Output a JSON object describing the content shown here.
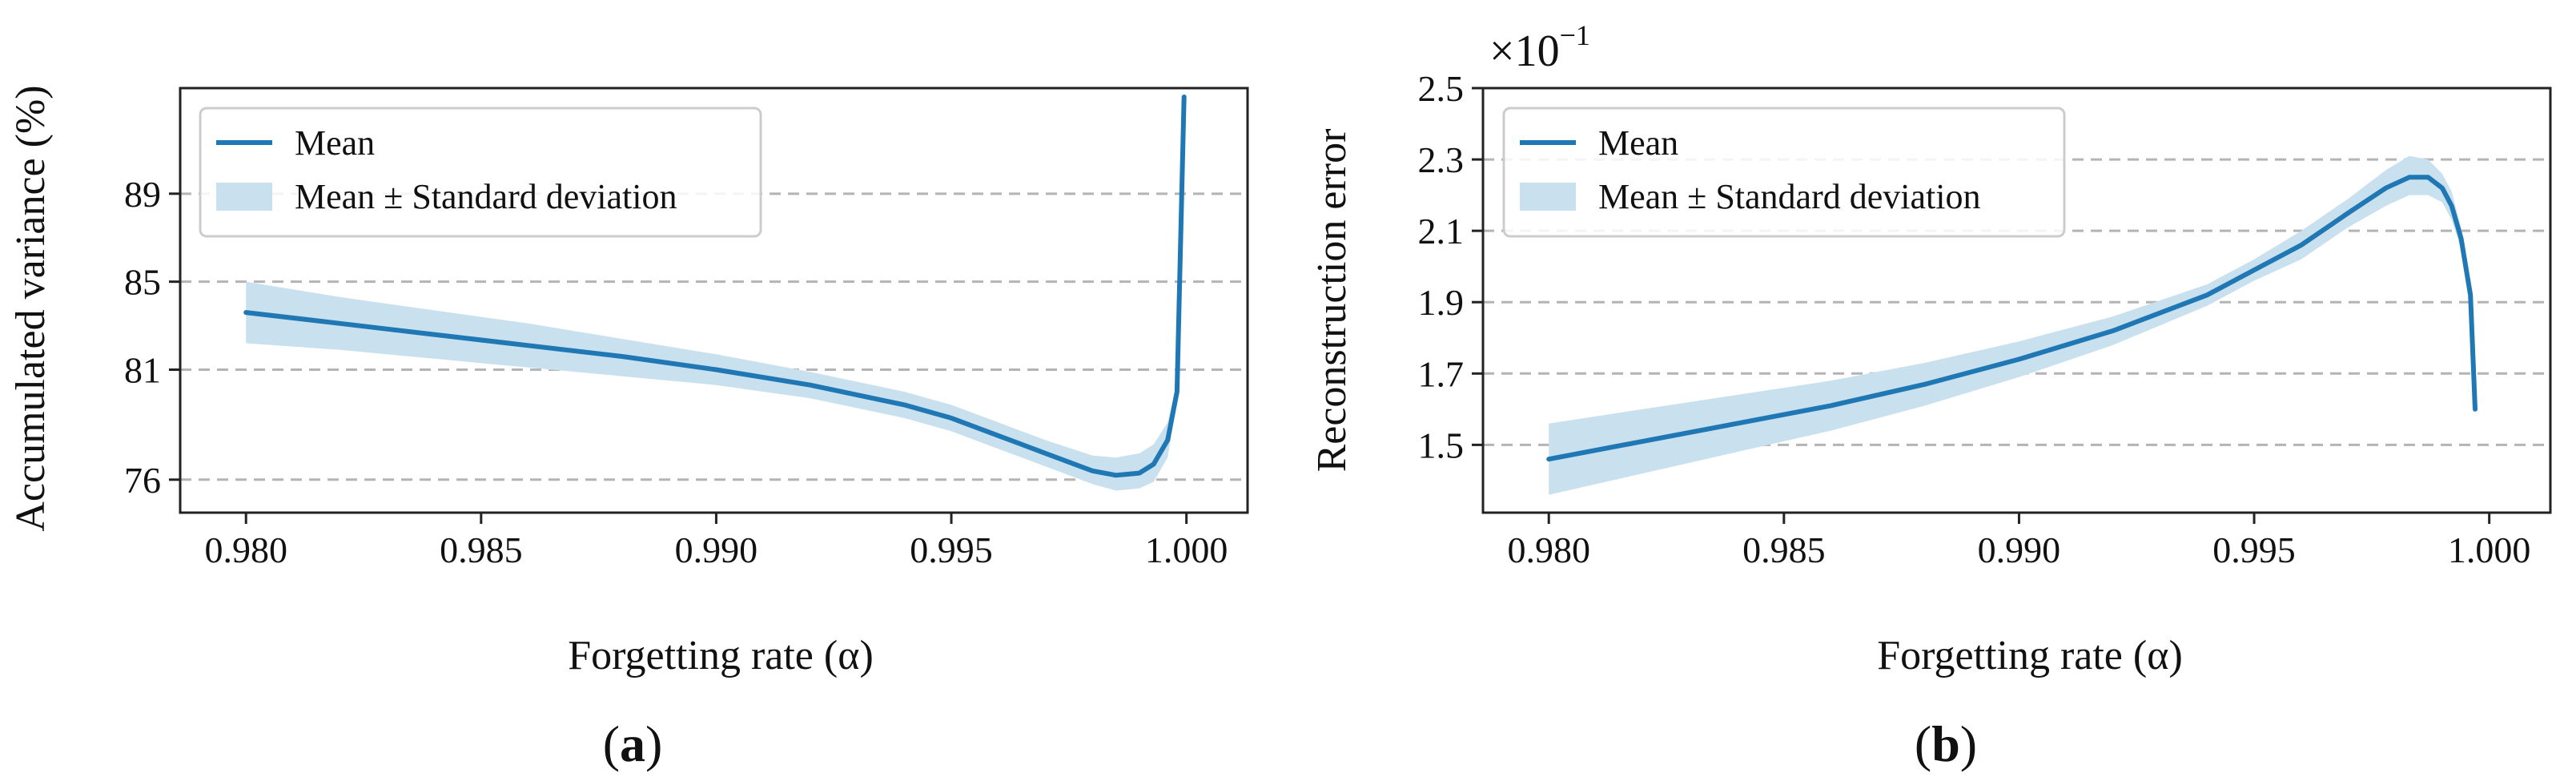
{
  "chart_data": [
    {
      "type": "line",
      "panel_label": "a",
      "xlabel": "Forgetting rate (α)",
      "ylabel": "Accumulated variance (%)",
      "xlim": [
        0.9786,
        1.0013
      ],
      "ylim": [
        74.5,
        93.8
      ],
      "xticks": [
        0.98,
        0.985,
        0.99,
        0.995,
        1.0
      ],
      "xtick_labels": [
        "0.980",
        "0.985",
        "0.990",
        "0.995",
        "1.000"
      ],
      "yticks": [
        76,
        81,
        85,
        89
      ],
      "ytick_labels": [
        "76",
        "81",
        "85",
        "89"
      ],
      "grid": "horizontal dashed",
      "legend": {
        "position": "top-left",
        "entries": [
          "Mean",
          "Mean ± Standard deviation"
        ]
      },
      "series": [
        {
          "name": "Mean",
          "x": [
            0.98,
            0.982,
            0.984,
            0.986,
            0.988,
            0.99,
            0.992,
            0.994,
            0.995,
            0.996,
            0.997,
            0.998,
            0.9985,
            0.999,
            0.9993,
            0.9996,
            0.9998,
            0.99995
          ],
          "y": [
            83.6,
            83.1,
            82.6,
            82.1,
            81.6,
            81.0,
            80.3,
            79.4,
            78.8,
            78.0,
            77.2,
            76.4,
            76.2,
            76.3,
            76.7,
            77.8,
            80.0,
            93.4
          ]
        },
        {
          "name": "Mean ± Standard deviation",
          "x": [
            0.98,
            0.982,
            0.984,
            0.986,
            0.988,
            0.99,
            0.992,
            0.994,
            0.995,
            0.996,
            0.997,
            0.998,
            0.9985,
            0.999,
            0.9993,
            0.9996,
            0.9998,
            0.99995
          ],
          "upper": [
            85.0,
            84.3,
            83.7,
            83.1,
            82.4,
            81.7,
            80.9,
            80.0,
            79.4,
            78.6,
            77.8,
            77.1,
            77.0,
            77.2,
            77.6,
            78.6,
            80.4,
            93.4
          ],
          "lower": [
            82.2,
            81.9,
            81.5,
            81.1,
            80.7,
            80.3,
            79.7,
            78.8,
            78.2,
            77.4,
            76.6,
            75.8,
            75.5,
            75.6,
            75.9,
            77.0,
            79.6,
            93.4
          ]
        }
      ]
    },
    {
      "type": "line",
      "panel_label": "b",
      "xlabel": "Forgetting rate (α)",
      "ylabel": "Reconstruction error",
      "y_multiplier": "×10",
      "y_multiplier_exponent": "−1",
      "xlim": [
        0.9786,
        1.0013
      ],
      "ylim": [
        1.31,
        2.5
      ],
      "xticks": [
        0.98,
        0.985,
        0.99,
        0.995,
        1.0
      ],
      "xtick_labels": [
        "0.980",
        "0.985",
        "0.990",
        "0.995",
        "1.000"
      ],
      "yticks": [
        1.5,
        1.7,
        1.9,
        2.1,
        2.3,
        2.5
      ],
      "ytick_labels": [
        "1.5",
        "1.7",
        "1.9",
        "2.1",
        "2.3",
        "2.5"
      ],
      "grid": "horizontal dashed",
      "legend": {
        "position": "top-left",
        "entries": [
          "Mean",
          "Mean ± Standard deviation"
        ]
      },
      "series": [
        {
          "name": "Mean",
          "x": [
            0.98,
            0.982,
            0.984,
            0.986,
            0.988,
            0.99,
            0.992,
            0.994,
            0.995,
            0.996,
            0.997,
            0.9978,
            0.9983,
            0.9987,
            0.999,
            0.9992,
            0.9994,
            0.9996,
            0.9997
          ],
          "y": [
            1.46,
            1.51,
            1.56,
            1.61,
            1.67,
            1.74,
            1.82,
            1.92,
            1.99,
            2.06,
            2.15,
            2.22,
            2.25,
            2.25,
            2.22,
            2.17,
            2.08,
            1.92,
            1.6
          ]
        },
        {
          "name": "Mean ± Standard deviation",
          "x": [
            0.98,
            0.982,
            0.984,
            0.986,
            0.988,
            0.99,
            0.992,
            0.994,
            0.995,
            0.996,
            0.997,
            0.9978,
            0.9983,
            0.9987,
            0.999,
            0.9992,
            0.9994,
            0.9996,
            0.9997
          ],
          "upper": [
            1.56,
            1.6,
            1.64,
            1.68,
            1.73,
            1.79,
            1.86,
            1.95,
            2.02,
            2.1,
            2.19,
            2.27,
            2.31,
            2.3,
            2.26,
            2.21,
            2.11,
            1.95,
            1.62
          ],
          "lower": [
            1.36,
            1.42,
            1.48,
            1.54,
            1.61,
            1.69,
            1.78,
            1.89,
            1.96,
            2.02,
            2.11,
            2.17,
            2.2,
            2.2,
            2.18,
            2.13,
            2.05,
            1.89,
            1.58
          ]
        }
      ]
    }
  ],
  "colors": {
    "line": "#1f77b4",
    "band": "#c9e0ee",
    "grid": "#b4b4b4",
    "axis": "#222222"
  }
}
